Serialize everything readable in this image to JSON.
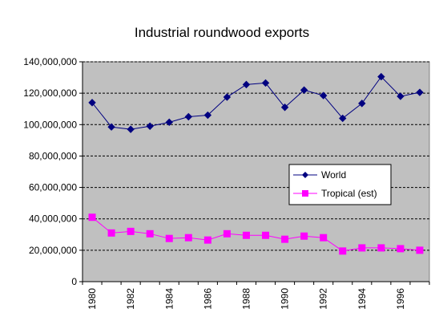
{
  "chart_data": {
    "type": "line",
    "title": "Industrial roundwood exports",
    "xlabel": "",
    "ylabel": "",
    "x": [
      1980,
      1981,
      1982,
      1983,
      1984,
      1985,
      1986,
      1987,
      1988,
      1989,
      1990,
      1991,
      1992,
      1993,
      1994,
      1995,
      1996,
      1997
    ],
    "x_tick_labels": [
      "1980",
      "1982",
      "1984",
      "1986",
      "1988",
      "1990",
      "1992",
      "1994",
      "1996"
    ],
    "y_tick_labels": [
      "0",
      "20,000,000",
      "40,000,000",
      "60,000,000",
      "80,000,000",
      "100,000,000",
      "120,000,000",
      "140,000,000"
    ],
    "ylim": [
      0,
      140000000
    ],
    "grid": true,
    "legend_position": "right-center",
    "series": [
      {
        "name": "World",
        "color": "#000080",
        "marker": "diamond",
        "values": [
          114000000,
          98500000,
          97000000,
          99000000,
          101500000,
          105000000,
          106000000,
          117500000,
          125500000,
          126500000,
          111000000,
          122000000,
          118500000,
          104000000,
          113500000,
          130500000,
          118000000,
          120500000
        ]
      },
      {
        "name": "Tropical (est)",
        "color": "#FF00FF",
        "marker": "square",
        "values": [
          41000000,
          31000000,
          32000000,
          30500000,
          27500000,
          28000000,
          26500000,
          30500000,
          29500000,
          29500000,
          27000000,
          29000000,
          28000000,
          19500000,
          21500000,
          21500000,
          21000000,
          20000000
        ]
      }
    ],
    "plot_background": "#C0C0C0"
  }
}
